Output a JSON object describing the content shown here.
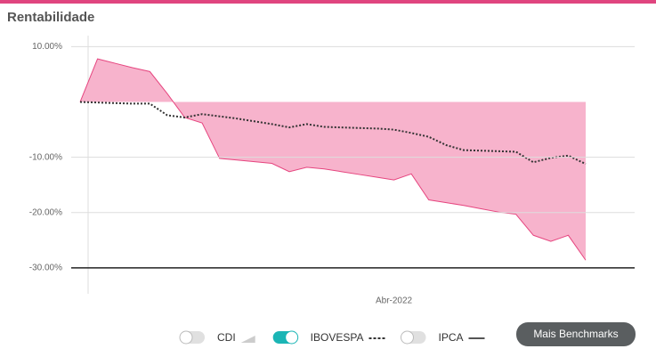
{
  "chart_data": {
    "type": "area-line",
    "title": "Rentabilidade",
    "categories": [
      null,
      null,
      null,
      null,
      null,
      null,
      null,
      null,
      null,
      null,
      null,
      null,
      null,
      null,
      null,
      null,
      null,
      null,
      "Abr-2022",
      null,
      null,
      null,
      null,
      null,
      null,
      null,
      null,
      null,
      null,
      null
    ],
    "series": [
      {
        "color": "#e6457f",
        "fill": "#f7b3cc",
        "style": "area",
        "values": [
          0,
          7.8,
          7.0,
          6.2,
          5.5,
          1.5,
          -2.8,
          -3.8,
          -10.2,
          -10.5,
          -10.8,
          -11.1,
          -12.6,
          -11.8,
          -12.1,
          -12.6,
          -13.1,
          -13.6,
          -14.1,
          -13.0,
          -17.7,
          -18.2,
          -18.7,
          -19.3,
          -19.9,
          -20.3,
          -24.1,
          -25.2,
          -24.1,
          -28.6
        ]
      },
      {
        "color": "#333333",
        "style": "dotted",
        "values": [
          0,
          -0.1,
          -0.2,
          -0.3,
          -0.3,
          -2.4,
          -2.8,
          -2.2,
          -2.6,
          -3.0,
          -3.5,
          -4.0,
          -4.6,
          -4.0,
          -4.5,
          -4.6,
          -4.7,
          -4.8,
          -5.0,
          -5.6,
          -6.3,
          -7.8,
          -8.7,
          -8.8,
          -8.9,
          -9.0,
          -10.9,
          -10.1,
          -9.7,
          -11.2
        ]
      }
    ],
    "ylim": [
      -35,
      12
    ],
    "yticks": [
      {
        "value": 10,
        "label": "10.00%"
      },
      {
        "value": -10,
        "label": "-10.00%"
      },
      {
        "value": -20,
        "label": "-20.00%"
      },
      {
        "value": -30,
        "label": "-30.00%"
      }
    ],
    "grid": true,
    "benchmarks": [
      {
        "label": "CDI",
        "active": false,
        "icon": "area"
      },
      {
        "label": "IBOVESPA",
        "active": true,
        "icon": "dotted"
      },
      {
        "label": "IPCA",
        "active": false,
        "icon": "line"
      }
    ],
    "button": "Mais Benchmarks"
  }
}
